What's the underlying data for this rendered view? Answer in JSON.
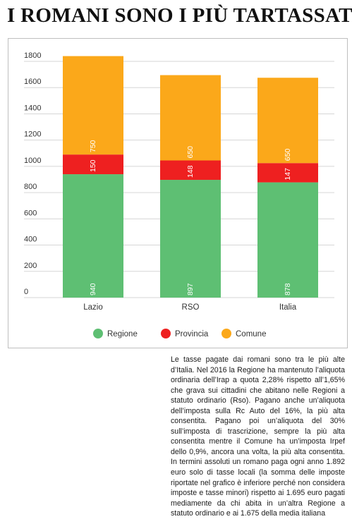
{
  "headline": "I ROMANI SONO I PIÙ TARTASSATI",
  "colors": {
    "regione": "#5ebf73",
    "provincia": "#ee2020",
    "comune": "#fba81a",
    "grid": "#d6d6d6",
    "axis_text": "#333333",
    "bar_label": "#ffffff"
  },
  "chart_data": {
    "type": "bar",
    "stacked": true,
    "categories": [
      "Lazio",
      "RSO",
      "Italia"
    ],
    "series": [
      {
        "name": "Regione",
        "values": [
          940,
          897,
          878
        ],
        "labels": [
          "940",
          "897",
          "878"
        ]
      },
      {
        "name": "Provincia",
        "values": [
          150,
          148,
          147
        ],
        "labels": [
          "150",
          "148",
          "147"
        ]
      },
      {
        "name": "Comune",
        "values": [
          750,
          650,
          650
        ],
        "labels": [
          "750",
          "650",
          "650"
        ]
      }
    ],
    "yticks": [
      "0",
      "200",
      "400",
      "600",
      "800",
      "1000",
      "1200",
      "1400",
      "1600",
      "1800"
    ],
    "ylim": [
      0,
      1800
    ],
    "grid": true,
    "legend_position": "bottom"
  },
  "article_text": "Le tasse pagate dai romani sono tra le più alte d’Italia. Nel 2016 la Regione ha mantenuto l’aliquota ordinaria dell’Irap a quota 2,28% rispetto all’1,65% che grava sui cittadini che abitano nelle Regioni a statuto ordinario (Rso). Pagano anche un’aliquota dell’imposta sulla Rc Auto del 16%, la più alta consentita. Pagano poi un’aliquota del 30% sull’imposta di trascrizione, sempre la più alta consentita mentre il Comune ha un’imposta Irpef dello 0,9%, ancora una volta, la più alta consentita. In termini assoluti un romano paga ogni anno 1.892 euro solo di tasse locali (la somma delle imposte riportate nel grafico è inferiore perché non considera imposte e tasse minori) rispetto ai 1.695 euro pagati mediamente da chi abita in un’altra Regione a statuto ordinario e ai 1.675 della media italiana"
}
